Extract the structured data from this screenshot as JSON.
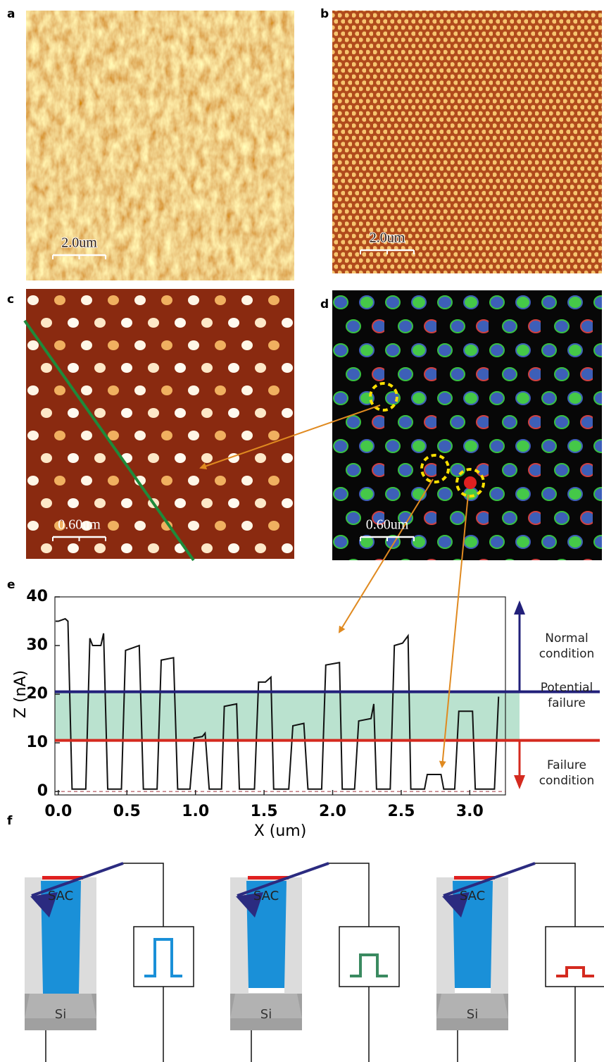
{
  "panels": {
    "labels": [
      "a",
      "b",
      "c",
      "d",
      "e",
      "f"
    ]
  },
  "scale_bars": [
    "2.0um",
    "2.0um",
    "0.60um",
    "0.60um"
  ],
  "chart_data": {
    "type": "line",
    "x_label": "X (um)",
    "y_label": "Z (nA)",
    "xlim": [
      -0.025,
      3.26
    ],
    "ylim": [
      -0.7,
      40
    ],
    "xticks": [
      {
        "value": 0,
        "label": "0.0"
      },
      {
        "value": 0.5,
        "label": "0.5"
      },
      {
        "value": 1,
        "label": "1.0"
      },
      {
        "value": 1.5,
        "label": "1.5"
      },
      {
        "value": 2,
        "label": "2.0"
      },
      {
        "value": 2.5,
        "label": "2.5"
      },
      {
        "value": 3,
        "label": "3.0"
      }
    ],
    "yticks": [
      0,
      10,
      20,
      30,
      40
    ],
    "series": [
      {
        "color": "#111111",
        "x": [
          -0.02,
          0.0,
          0.05,
          0.07,
          0.1,
          0.2,
          0.23,
          0.25,
          0.31,
          0.33,
          0.36,
          0.46,
          0.49,
          0.59,
          0.62,
          0.72,
          0.75,
          0.84,
          0.87,
          0.96,
          0.99,
          1.05,
          1.07,
          1.1,
          1.19,
          1.21,
          1.3,
          1.32,
          1.43,
          1.46,
          1.51,
          1.55,
          1.57,
          1.68,
          1.71,
          1.79,
          1.82,
          1.92,
          1.95,
          2.05,
          2.07,
          2.16,
          2.19,
          2.28,
          2.3,
          2.32,
          2.42,
          2.45,
          2.51,
          2.55,
          2.57,
          2.67,
          2.69,
          2.79,
          2.81,
          2.89,
          2.92,
          3.02,
          3.04,
          3.18,
          3.21
        ],
        "values": [
          35,
          35,
          35.5,
          35,
          0.5,
          0.5,
          31.5,
          30,
          30,
          32.5,
          0.5,
          0.5,
          29,
          30,
          0.5,
          0.5,
          27,
          27.5,
          0.5,
          0.5,
          11,
          11.3,
          12,
          0.5,
          0.5,
          17.5,
          18,
          0.5,
          0.5,
          22.5,
          22.5,
          23.5,
          0.5,
          0.5,
          13.5,
          14,
          0.5,
          0.5,
          26,
          26.5,
          0.5,
          0.5,
          14.5,
          15,
          18,
          0.5,
          0.5,
          30,
          30.5,
          32,
          0.5,
          0.5,
          3.5,
          3.5,
          0.5,
          0.5,
          16.5,
          16.5,
          0.5,
          0.5,
          19.5
        ]
      }
    ],
    "thresholds": [
      {
        "value": 20.5,
        "color": "#22207a"
      },
      {
        "value": 10.5,
        "color": "#d42a1f"
      }
    ],
    "baseline": {
      "value": 0,
      "color": "#a0303a"
    },
    "annotations": [
      "Normal condition",
      "Potential failure",
      "Failure condition"
    ]
  },
  "diagram": {
    "cells": [
      {
        "sac": "SAC",
        "si": "Si"
      },
      {
        "sac": "SAC",
        "si": "Si"
      },
      {
        "sac": "SAC",
        "si": "Si"
      }
    ]
  }
}
